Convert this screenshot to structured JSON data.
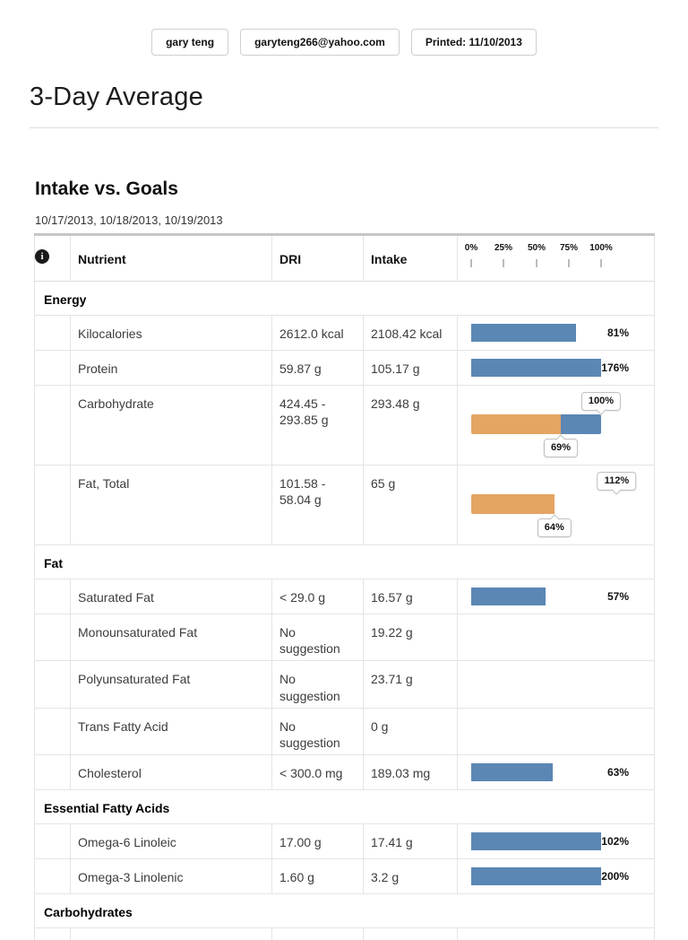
{
  "header": {
    "user_name": "gary teng",
    "user_email": "garyteng266@yahoo.com",
    "printed": "Printed: 11/10/2013"
  },
  "page_title": "3-Day Average",
  "section": {
    "title": "Intake vs. Goals",
    "dates": "10/17/2013, 10/18/2013, 10/19/2013"
  },
  "table": {
    "columns": {
      "nutrient": "Nutrient",
      "dri": "DRI",
      "intake": "Intake"
    },
    "info_icon_glyph": "i",
    "scale_labels": [
      "0%",
      "25%",
      "50%",
      "75%",
      "100%"
    ],
    "colors": {
      "bar_blue": "#5b87b4",
      "bar_orange": "#e4a462"
    },
    "groups": [
      {
        "label": "Energy",
        "rows": [
          {
            "nutrient": "Kilocalories",
            "dri": "2612.0 kcal",
            "intake": "2108.42 kcal",
            "bar": {
              "type": "single",
              "percent": 81,
              "percent_label": "81%"
            }
          },
          {
            "nutrient": "Protein",
            "dri": "59.87 g",
            "intake": "105.17 g",
            "bar": {
              "type": "single",
              "percent": 176,
              "percent_label": "176%"
            }
          },
          {
            "nutrient": "Carbohydrate",
            "dri": "424.45 - 293.85 g",
            "intake": "293.48 g",
            "bar": {
              "type": "range",
              "orange_percent": 69,
              "blue_percent": 100,
              "top_label": "100%",
              "top_percent": 100,
              "bottom_label": "69%",
              "bottom_percent": 69
            }
          },
          {
            "nutrient": "Fat, Total",
            "dri": "101.58 - 58.04 g",
            "intake": "65 g",
            "bar": {
              "type": "range",
              "orange_percent": 64,
              "blue_percent": 64,
              "top_label": "112%",
              "top_percent": 112,
              "bottom_label": "64%",
              "bottom_percent": 64
            }
          }
        ]
      },
      {
        "label": "Fat",
        "rows": [
          {
            "nutrient": "Saturated Fat",
            "dri": "< 29.0 g",
            "intake": "16.57 g",
            "bar": {
              "type": "single",
              "percent": 57,
              "percent_label": "57%"
            }
          },
          {
            "nutrient": "Monounsaturated Fat",
            "dri": "No suggestion",
            "intake": "19.22 g",
            "bar": null
          },
          {
            "nutrient": "Polyunsaturated Fat",
            "dri": "No suggestion",
            "intake": "23.71 g",
            "bar": null
          },
          {
            "nutrient": "Trans Fatty Acid",
            "dri": "No suggestion",
            "intake": "0 g",
            "bar": null
          },
          {
            "nutrient": "Cholesterol",
            "dri": "< 300.0 mg",
            "intake": "189.03 mg",
            "bar": {
              "type": "single",
              "percent": 63,
              "percent_label": "63%"
            }
          }
        ]
      },
      {
        "label": "Essential Fatty Acids",
        "rows": [
          {
            "nutrient": "Omega-6 Linoleic",
            "dri": "17.00 g",
            "intake": "17.41 g",
            "bar": {
              "type": "single",
              "percent": 102,
              "percent_label": "102%"
            }
          },
          {
            "nutrient": "Omega-3 Linolenic",
            "dri": "1.60 g",
            "intake": "3.2 g",
            "bar": {
              "type": "single",
              "percent": 200,
              "percent_label": "200%"
            }
          }
        ]
      },
      {
        "label": "Carbohydrates",
        "rows": []
      }
    ]
  }
}
